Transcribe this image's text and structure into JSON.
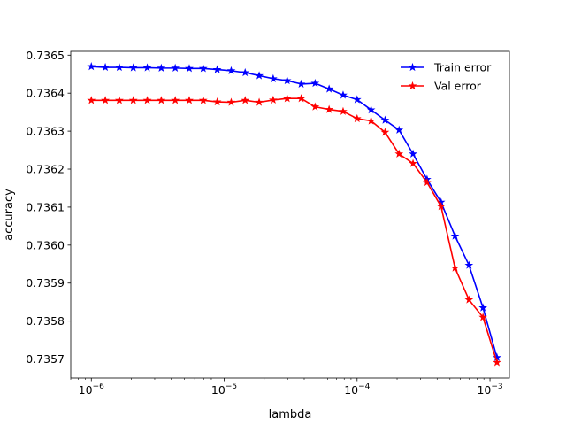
{
  "chart_data": {
    "type": "line",
    "title": "",
    "xlabel": "lambda",
    "ylabel": "accuracy",
    "xscale": "log",
    "xlim": [
      7e-07,
      0.0014
    ],
    "ylim": [
      0.73565,
      0.73651
    ],
    "xticks": [
      {
        "value": 1e-06,
        "base": "10",
        "exp": "−6"
      },
      {
        "value": 1e-05,
        "base": "10",
        "exp": "−5"
      },
      {
        "value": 0.0001,
        "base": "10",
        "exp": "−4"
      },
      {
        "value": 0.001,
        "base": "10",
        "exp": "−3"
      }
    ],
    "yticks": [
      {
        "value": 0.7357,
        "label": "0.7357"
      },
      {
        "value": 0.7358,
        "label": "0.7358"
      },
      {
        "value": 0.7359,
        "label": "0.7359"
      },
      {
        "value": 0.736,
        "label": "0.7360"
      },
      {
        "value": 0.7361,
        "label": "0.7361"
      },
      {
        "value": 0.7362,
        "label": "0.7362"
      },
      {
        "value": 0.7363,
        "label": "0.7363"
      },
      {
        "value": 0.7364,
        "label": "0.7364"
      },
      {
        "value": 0.7365,
        "label": "0.7365"
      }
    ],
    "grid": false,
    "legend_position": "top-right",
    "x": [
      1e-06,
      1.274e-06,
      1.624e-06,
      2.069e-06,
      2.637e-06,
      3.36e-06,
      4.281e-06,
      5.456e-06,
      6.952e-06,
      8.859e-06,
      1.129e-05,
      1.438e-05,
      1.833e-05,
      2.336e-05,
      2.976e-05,
      3.793e-05,
      4.833e-05,
      6.158e-05,
      7.848e-05,
      0.0001,
      0.0001274,
      0.0001624,
      0.0002069,
      0.0002637,
      0.000336,
      0.0004281,
      0.0005456,
      0.0006952,
      0.0008859,
      0.001129
    ],
    "series": [
      {
        "name": "Train error",
        "color": "#0000ff",
        "values": [
          0.73647,
          0.736468,
          0.736468,
          0.736467,
          0.736467,
          0.736466,
          0.736466,
          0.736465,
          0.736465,
          0.736462,
          0.736459,
          0.736454,
          0.736446,
          0.736438,
          0.736433,
          0.736424,
          0.736426,
          0.736411,
          0.736395,
          0.736383,
          0.736356,
          0.736329,
          0.736303,
          0.73624,
          0.736173,
          0.736113,
          0.736024,
          0.735947,
          0.735835,
          0.735704
        ]
      },
      {
        "name": "Val error",
        "color": "#ff0000",
        "values": [
          0.736381,
          0.736381,
          0.736381,
          0.736381,
          0.736381,
          0.736381,
          0.736381,
          0.736381,
          0.736381,
          0.736377,
          0.736376,
          0.736381,
          0.736376,
          0.736382,
          0.736386,
          0.736386,
          0.736364,
          0.736357,
          0.736352,
          0.736333,
          0.736327,
          0.736297,
          0.73624,
          0.736215,
          0.736165,
          0.736102,
          0.73594,
          0.735856,
          0.73581,
          0.735691
        ]
      }
    ]
  }
}
